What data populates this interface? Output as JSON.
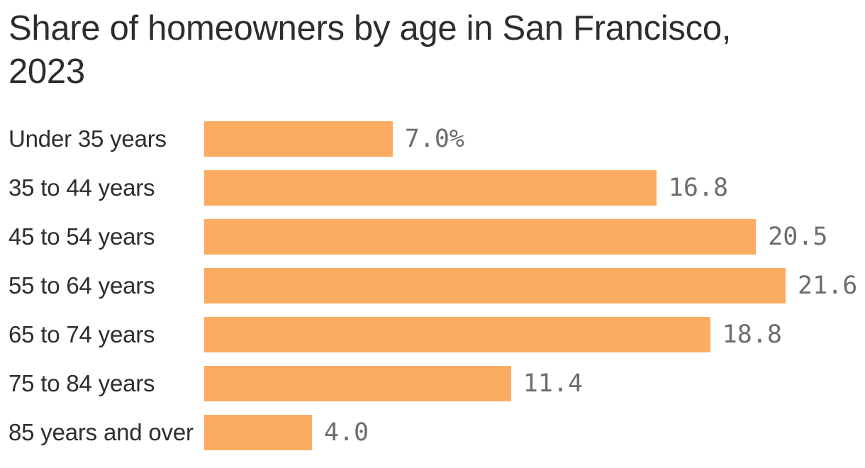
{
  "chart": {
    "title_lines": [
      "Share of homeowners by age in San Francisco,",
      "2023"
    ]
  },
  "chart_data": {
    "type": "bar",
    "orientation": "horizontal",
    "title": "Share of homeowners by age in San Francisco, 2023",
    "categories": [
      "Under 35 years",
      "35 to 44 years",
      "45 to 54 years",
      "55 to 64 years",
      "65 to 74 years",
      "75 to 84 years",
      "85 years and over"
    ],
    "values": [
      7.0,
      16.8,
      20.5,
      21.6,
      18.8,
      11.4,
      4.0
    ],
    "value_labels": [
      "7.0%",
      "16.8",
      "20.5",
      "21.6",
      "18.8",
      "11.4",
      "4.0"
    ],
    "unit": "percent",
    "xlim": [
      0,
      21.6
    ],
    "grid": false,
    "legend": false,
    "bar_color": "#fbac61",
    "value_label_color": "#6b6d6f",
    "category_label_color": "#2b2d30",
    "title_color": "#2b2d30"
  }
}
